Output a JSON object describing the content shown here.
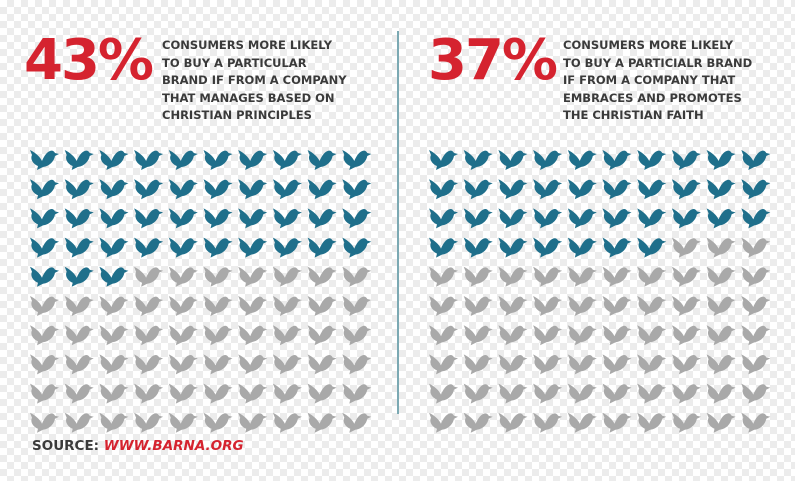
{
  "colors": {
    "accent_red": "#d5232f",
    "dove_blue": "#1f6f8b",
    "dove_gray": "#a9a9a9",
    "divider": "#7ba9b3",
    "text_dark": "#3a3a3a"
  },
  "icon": "dove-icon",
  "source": {
    "label": "SOURCE:",
    "url": "WWW.BARNA.ORG"
  },
  "chart_data": [
    {
      "type": "waffle",
      "value": 43,
      "total": 100,
      "value_label": "43%",
      "description_lines": [
        "CONSUMERS MORE LIKELY",
        "TO BUY A PARTICULAR",
        "BRAND IF FROM A COMPANY",
        "THAT MANAGES BASED ON",
        "CHRISTIAN PRINCIPLES"
      ]
    },
    {
      "type": "waffle",
      "value": 37,
      "total": 100,
      "value_label": "37%",
      "description_lines": [
        "CONSUMERS MORE LIKELY",
        "TO BUY A PARTICIALR BRAND",
        "IF FROM A COMPANY THAT",
        "EMBRACES AND PROMOTES",
        "THE CHRISTIAN FAITH"
      ]
    }
  ]
}
